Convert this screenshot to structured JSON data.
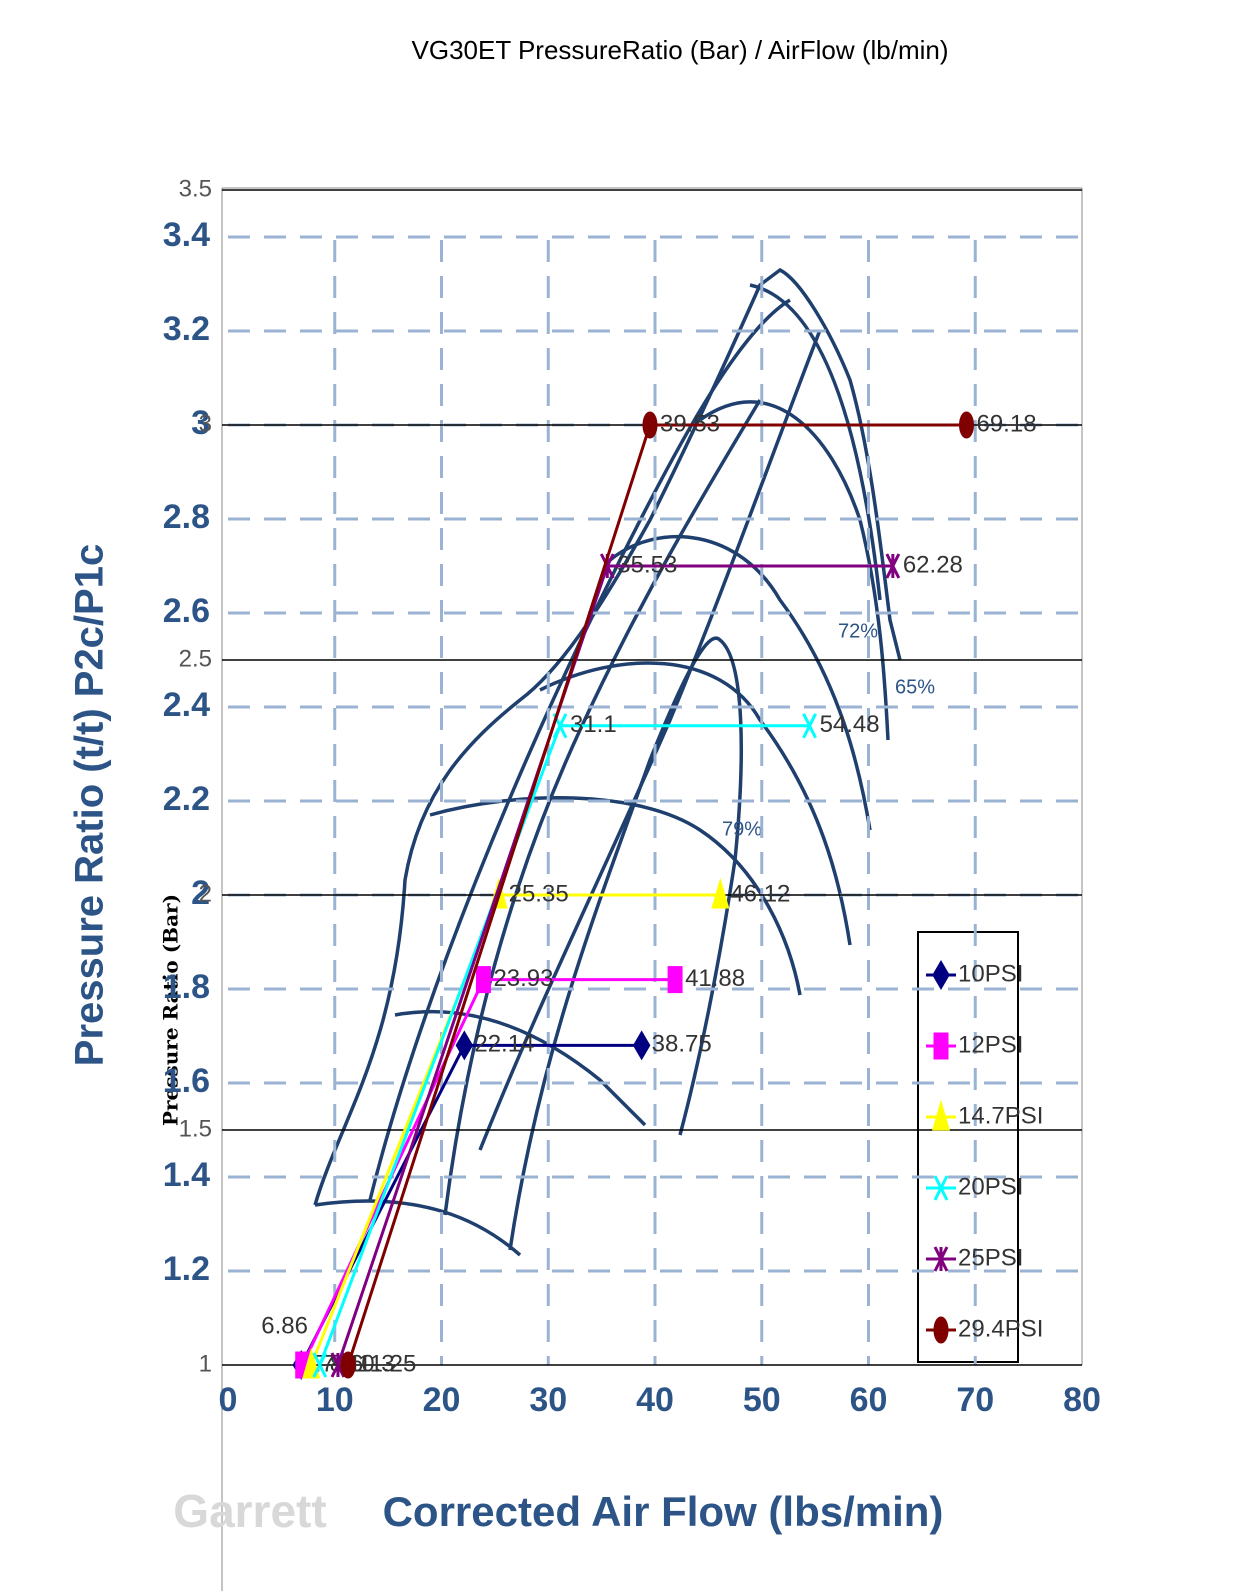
{
  "chart_data": {
    "type": "line",
    "title": "VG30ET PressureRatio (Bar) / AirFlow (lb/min)",
    "y_label": "Pressure Ratio (Bar)",
    "map_y_label": "Pressure Ratio (t/t) P2c/P1c",
    "map_x_label": "Corrected Air Flow (lbs/min)",
    "map_brand": "Garrett",
    "efficiency_labels": [
      "72%",
      "65%",
      "79%"
    ],
    "xlim": [
      0,
      80
    ],
    "xticks": [
      0,
      10,
      20,
      30,
      40,
      50,
      60,
      70,
      80
    ],
    "ylim": [
      1,
      3.5
    ],
    "yticks": [
      1,
      1.5,
      2,
      2.5,
      3,
      3.5
    ],
    "map_yticks": [
      1.2,
      1.4,
      1.6,
      1.8,
      2,
      2.2,
      2.4,
      2.6,
      2.8,
      3,
      3.2,
      3.4
    ],
    "grid": true,
    "legend": "right",
    "series": [
      {
        "name": "10PSI",
        "color": "#000080",
        "marker": "diamond",
        "x": [
          6.86,
          22.14,
          38.75
        ],
        "values": [
          1,
          1.68,
          1.68
        ]
      },
      {
        "name": "12PSI",
        "color": "#ff00ff",
        "marker": "square",
        "x": [
          7.0,
          23.93,
          41.88
        ],
        "values": [
          1,
          1.82,
          1.82
        ]
      },
      {
        "name": "14.7PSI",
        "color": "#ffff00",
        "marker": "triangle",
        "x": [
          7.8,
          25.35,
          46.12
        ],
        "values": [
          1,
          2,
          2
        ]
      },
      {
        "name": "20PSI",
        "color": "#00ffff",
        "marker": "x",
        "x": [
          8.6,
          31.1,
          54.48
        ],
        "values": [
          1,
          2.36,
          2.36
        ]
      },
      {
        "name": "25PSI",
        "color": "#800080",
        "marker": "star",
        "x": [
          10.3,
          35.53,
          62.28
        ],
        "values": [
          1,
          2.7,
          2.7
        ]
      },
      {
        "name": "29.4PSI",
        "color": "#800000",
        "marker": "circle",
        "x": [
          11.25,
          39.53,
          69.18
        ],
        "values": [
          1,
          3,
          3
        ]
      }
    ]
  }
}
